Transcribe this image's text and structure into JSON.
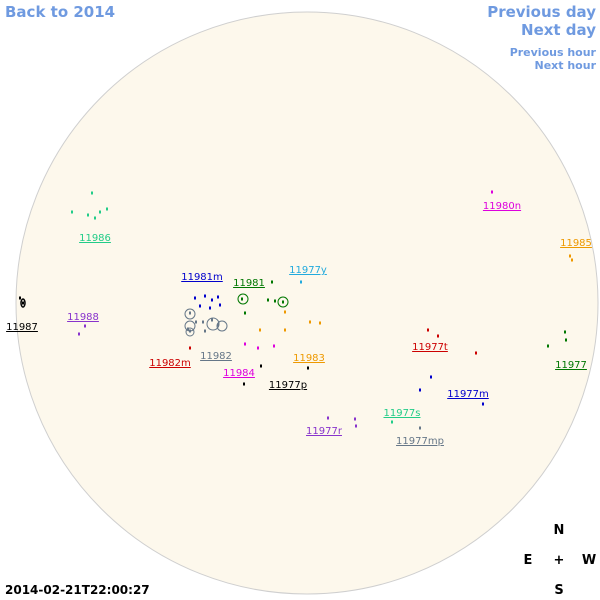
{
  "nav": {
    "back": "Back to 2014",
    "previous_day": "Previous day",
    "next_day": "Next day",
    "previous_hour": "Previous hour",
    "next_hour": "Next hour"
  },
  "regions": [
    {
      "label": "11986",
      "color": "#22cc88"
    },
    {
      "label": "11981m",
      "color": "#0000cc"
    },
    {
      "label": "11981",
      "color": "#007700"
    },
    {
      "label": "11977y",
      "color": "#22aadd"
    },
    {
      "label": "11988",
      "color": "#8833cc"
    },
    {
      "label": "11987",
      "color": "#000000"
    },
    {
      "label": "11982m",
      "color": "#cc0000"
    },
    {
      "label": "11982",
      "color": "#667788"
    },
    {
      "label": "11983",
      "color": "#ee9900"
    },
    {
      "label": "11984",
      "color": "#dd00dd"
    },
    {
      "label": "11977p",
      "color": "#000000"
    },
    {
      "label": "11980n",
      "color": "#dd00dd"
    },
    {
      "label": "11985",
      "color": "#ee9900"
    },
    {
      "label": "11977t",
      "color": "#cc0000"
    },
    {
      "label": "11977",
      "color": "#007700"
    },
    {
      "label": "11977m",
      "color": "#0000cc"
    },
    {
      "label": "11977s",
      "color": "#22cc88"
    },
    {
      "label": "11977r",
      "color": "#8833cc"
    },
    {
      "label": "11977mp",
      "color": "#667788"
    }
  ],
  "compass": {
    "north": "N",
    "east": "E",
    "center": "+",
    "west": "W",
    "south": "S"
  },
  "timestamp": "2014-02-21T22:00:27"
}
